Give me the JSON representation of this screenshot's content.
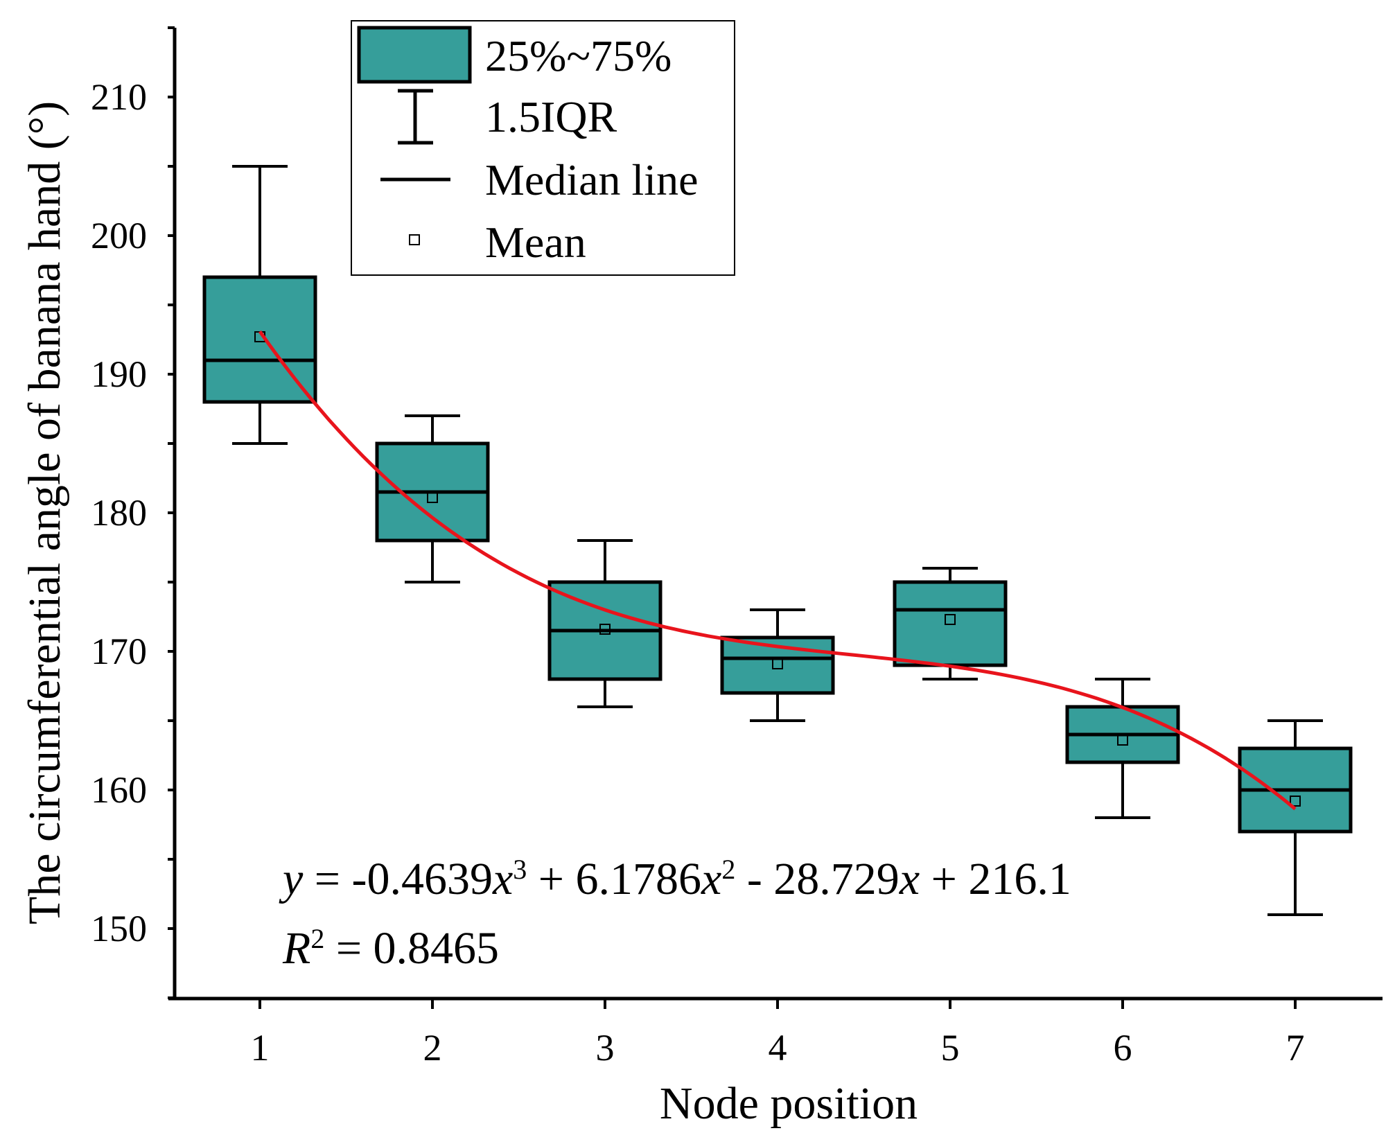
{
  "chart_data": {
    "type": "box",
    "xlabel": "Node position",
    "ylabel": "The circumferential angle of banana hand (°)",
    "categories": [
      "1",
      "2",
      "3",
      "4",
      "5",
      "6",
      "7"
    ],
    "ylim": [
      145,
      215
    ],
    "yticks": [
      150,
      160,
      170,
      180,
      190,
      200,
      210
    ],
    "boxes": [
      {
        "x": 1,
        "whisker_low": 185,
        "q1": 188,
        "median": 191,
        "q3": 197,
        "whisker_high": 205,
        "mean": 192.7
      },
      {
        "x": 2,
        "whisker_low": 175,
        "q1": 178,
        "median": 181.5,
        "q3": 185,
        "whisker_high": 187,
        "mean": 181.1
      },
      {
        "x": 3,
        "whisker_low": 166,
        "q1": 168,
        "median": 171.5,
        "q3": 175,
        "whisker_high": 178,
        "mean": 171.6
      },
      {
        "x": 4,
        "whisker_low": 165,
        "q1": 167,
        "median": 169.5,
        "q3": 171,
        "whisker_high": 173,
        "mean": 169.1
      },
      {
        "x": 5,
        "whisker_low": 168,
        "q1": 169,
        "median": 173,
        "q3": 175,
        "whisker_high": 176,
        "mean": 172.3
      },
      {
        "x": 6,
        "whisker_low": 158,
        "q1": 162,
        "median": 164,
        "q3": 166,
        "whisker_high": 168,
        "mean": 163.6
      },
      {
        "x": 7,
        "whisker_low": 151,
        "q1": 157,
        "median": 160,
        "q3": 163,
        "whisker_high": 165,
        "mean": 159.2
      }
    ],
    "fit": {
      "coefficients": [
        -0.4639,
        6.1786,
        -28.729,
        216.1
      ],
      "x_range": [
        1,
        7
      ],
      "color": "#e8141c"
    },
    "legend": {
      "position": "top",
      "entries": [
        {
          "kind": "box",
          "label": "25%~75%"
        },
        {
          "kind": "whisker",
          "label": "1.5IQR"
        },
        {
          "kind": "median",
          "label": "Median line"
        },
        {
          "kind": "mean",
          "label": "Mean"
        }
      ]
    },
    "equation": {
      "y": "y",
      "eq1": " = -0.4639",
      "x1": "x",
      "exp3": "3",
      "plus1": " + 6.1786",
      "x2": "x",
      "exp2": "2",
      "minus": " - 28.729",
      "x3": "x",
      "tail": " + 216.1"
    },
    "r2": {
      "R": "R",
      "exp": "2",
      "value": " = 0.8465"
    },
    "colors": {
      "box_fill": "#369e9a",
      "box_stroke": "#000000",
      "fit_line": "#e8141c"
    }
  }
}
